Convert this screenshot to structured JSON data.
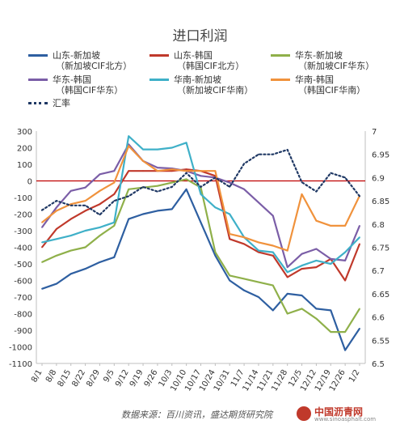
{
  "chart_data": {
    "type": "line",
    "title": "进口利润",
    "x": [
      "8/1",
      "8/8",
      "8/15",
      "8/22",
      "8/29",
      "9/5",
      "9/12",
      "9/19",
      "9/26",
      "10/3",
      "10/10",
      "10/17",
      "10/24",
      "10/31",
      "11/7",
      "11/14",
      "11/21",
      "11/28",
      "12/5",
      "12/12",
      "12/19",
      "12/26",
      "1/2"
    ],
    "ylim": [
      -1100,
      300
    ],
    "y2lim": [
      6.5,
      7.0
    ],
    "yticks": [
      "300",
      "200",
      "100",
      "0",
      "-100",
      "-200",
      "-300",
      "-400",
      "-500",
      "-600",
      "-700",
      "-800",
      "-900",
      "-1000",
      "-1100"
    ],
    "y2ticks": [
      "7",
      "6.95",
      "6.9",
      "6.85",
      "6.8",
      "6.75",
      "6.7",
      "6.65",
      "6.6",
      "6.55",
      "6.5"
    ],
    "legend_position": "top",
    "zero_line_color": "#c00000",
    "series": [
      {
        "name": "山东-新加坡",
        "sub": "（新加坡CIF北方）",
        "color": "#2e5fa1",
        "axis": "left",
        "values": [
          -650,
          -620,
          -560,
          -530,
          -490,
          -460,
          -230,
          -200,
          -180,
          -170,
          -50,
          -250,
          -450,
          -600,
          -660,
          -700,
          -780,
          -680,
          -690,
          -770,
          -780,
          -1020,
          -890
        ]
      },
      {
        "name": "山东-韩国",
        "sub": "（韩国CIF北方）",
        "color": "#c0392b",
        "axis": "left",
        "values": [
          -400,
          -290,
          -230,
          -180,
          -140,
          -80,
          60,
          60,
          60,
          60,
          70,
          60,
          30,
          -350,
          -380,
          -430,
          -450,
          -580,
          -530,
          -520,
          -470,
          -600,
          -380
        ]
      },
      {
        "name": "华东-新加坡",
        "sub": "（新加坡CIF华东）",
        "color": "#8fb04a",
        "axis": "left",
        "values": [
          -490,
          -450,
          -420,
          -400,
          -330,
          -270,
          -50,
          -40,
          -30,
          -10,
          10,
          -40,
          -430,
          -570,
          -590,
          -610,
          -630,
          -800,
          -770,
          -830,
          -910,
          -910,
          -770
        ]
      },
      {
        "name": "华东-韩国",
        "sub": "（韩国CIF华东）",
        "color": "#7b5ea7",
        "axis": "left",
        "values": [
          -280,
          -160,
          -60,
          -40,
          40,
          60,
          220,
          120,
          80,
          75,
          60,
          30,
          20,
          -10,
          -50,
          -130,
          -210,
          -520,
          -440,
          -410,
          -470,
          -480,
          -270
        ]
      },
      {
        "name": "华南-新加坡",
        "sub": "（新加坡CIF华南）",
        "color": "#3fb0c8",
        "axis": "left",
        "values": [
          -370,
          -350,
          -330,
          -300,
          -280,
          -250,
          270,
          190,
          190,
          200,
          230,
          -80,
          -160,
          -200,
          -340,
          -420,
          -430,
          -550,
          -510,
          -480,
          -500,
          -430,
          -340
        ]
      },
      {
        "name": "华南-韩国",
        "sub": "（韩国CIF华南）",
        "color": "#f0923c",
        "axis": "left",
        "values": [
          -250,
          -180,
          -140,
          -120,
          -60,
          -10,
          210,
          120,
          60,
          70,
          60,
          60,
          60,
          -320,
          -340,
          -370,
          -390,
          -420,
          -80,
          -240,
          -270,
          -270,
          -90
        ]
      },
      {
        "name": "汇率",
        "sub": "",
        "color": "#1f3864",
        "axis": "right",
        "values": [
          6.83,
          6.85,
          6.84,
          6.84,
          6.82,
          6.85,
          6.86,
          6.88,
          6.87,
          6.88,
          6.91,
          6.88,
          6.9,
          6.88,
          6.93,
          6.95,
          6.95,
          6.96,
          6.89,
          6.87,
          6.91,
          6.9,
          6.86
        ]
      }
    ]
  },
  "source_text": "数据来源：百川资讯，盛达期货研究院",
  "watermark": {
    "text": "中国沥青网",
    "url": "www.sinoasphalt.com"
  }
}
